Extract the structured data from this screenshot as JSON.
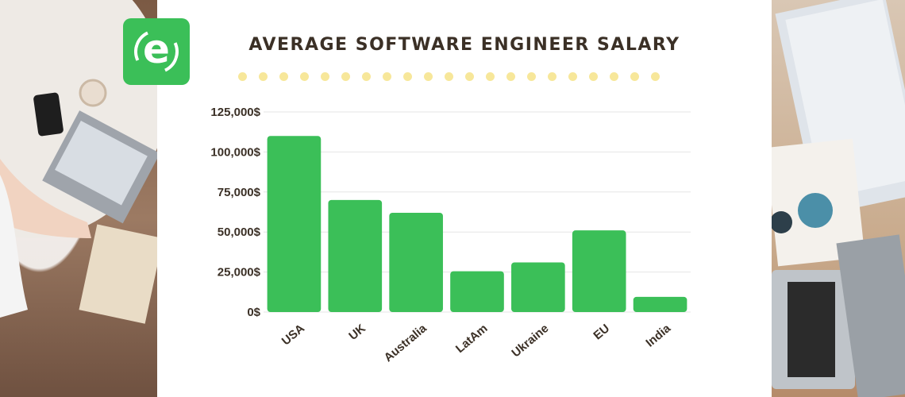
{
  "logo": {
    "letter": "e"
  },
  "colors": {
    "bar": "#3bbf58",
    "grid": "#e6e6e6",
    "dots": "#f7e79a",
    "title": "#3b3026"
  },
  "chart_data": {
    "type": "bar",
    "title": "AVERAGE SOFTWARE ENGINEER SALARY",
    "xlabel": "",
    "ylabel": "",
    "categories": [
      "USA",
      "UK",
      "Australia",
      "LatAm",
      "Ukraine",
      "EU",
      "India"
    ],
    "values": [
      110000,
      70000,
      62000,
      25500,
      31000,
      51000,
      9500
    ],
    "ylim": [
      0,
      125000
    ],
    "yticks": [
      0,
      25000,
      50000,
      75000,
      100000,
      125000
    ],
    "ytick_labels": [
      "0$",
      "25,000$",
      "50,000$",
      "75,000$",
      "100,000$",
      "125,000$"
    ],
    "grid": true,
    "legend": "none"
  }
}
